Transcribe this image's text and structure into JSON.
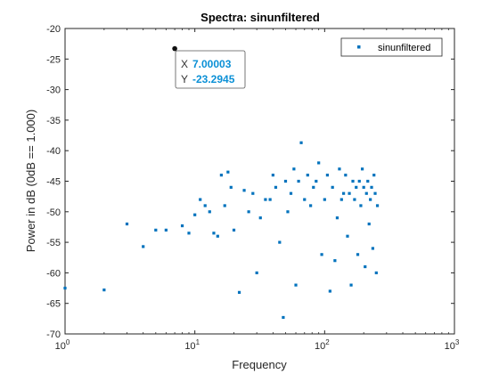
{
  "chart_data": {
    "type": "scatter",
    "title": "Spectra: sinunfiltered",
    "xlabel": "Frequency",
    "ylabel": "Power in dB (0dB == 1.000)",
    "xscale": "log",
    "xlim": [
      1,
      1000
    ],
    "ylim": [
      -70,
      -20
    ],
    "xtick_labels": [
      {
        "value": 1,
        "base": "10",
        "exp": "0"
      },
      {
        "value": 10,
        "base": "10",
        "exp": "1"
      },
      {
        "value": 100,
        "base": "10",
        "exp": "2"
      },
      {
        "value": 1000,
        "base": "10",
        "exp": "3"
      }
    ],
    "yticks": [
      -70,
      -65,
      -60,
      -55,
      -50,
      -45,
      -40,
      -35,
      -30,
      -25,
      -20
    ],
    "grid": false,
    "legend": {
      "position": "top-right",
      "entries": [
        "sinunfiltered"
      ]
    },
    "marker_color": "#0072bd",
    "series": [
      {
        "name": "sinunfiltered",
        "x": [
          1,
          2,
          3,
          4,
          5,
          6,
          7,
          8,
          9,
          10,
          11,
          12,
          13,
          14,
          15,
          16,
          17,
          18,
          19,
          20,
          22,
          24,
          26,
          28,
          30,
          32,
          35,
          38,
          40,
          42,
          45,
          48,
          50,
          52,
          55,
          58,
          60,
          63,
          66,
          70,
          74,
          78,
          82,
          86,
          90,
          95,
          100,
          105,
          110,
          115,
          120,
          125,
          130,
          135,
          140,
          145,
          150,
          155,
          160,
          165,
          170,
          175,
          180,
          185,
          190,
          195,
          200,
          205,
          210,
          215,
          220,
          225,
          230,
          235,
          240,
          245,
          250,
          255
        ],
        "y": [
          -62.5,
          -62.8,
          -52,
          -55.7,
          -53,
          -53,
          -23.3,
          -52.3,
          -53.5,
          -50.5,
          -48,
          -49,
          -50,
          -53.5,
          -54,
          -44,
          -49,
          -43.5,
          -46,
          -53,
          -63.2,
          -46.5,
          -50,
          -47,
          -60,
          -51,
          -48,
          -48,
          -44,
          -46,
          -55,
          -67.3,
          -45,
          -50,
          -47,
          -43,
          -62,
          -45,
          -38.7,
          -48,
          -44,
          -49,
          -46,
          -45,
          -42,
          -57,
          -48,
          -44,
          -63,
          -46,
          -58,
          -51,
          -43,
          -48,
          -47,
          -44,
          -54,
          -47,
          -62,
          -45,
          -48,
          -46,
          -57,
          -45,
          -49,
          -43,
          -46,
          -59,
          -47,
          -45,
          -52,
          -48,
          -46,
          -56,
          -44,
          -47,
          -60,
          -49
        ]
      }
    ]
  },
  "datatip": {
    "x_key": "X",
    "x_value": "7.00003",
    "y_key": "Y",
    "y_value": "-23.2945",
    "x": 7.00003,
    "y": -23.2945
  }
}
